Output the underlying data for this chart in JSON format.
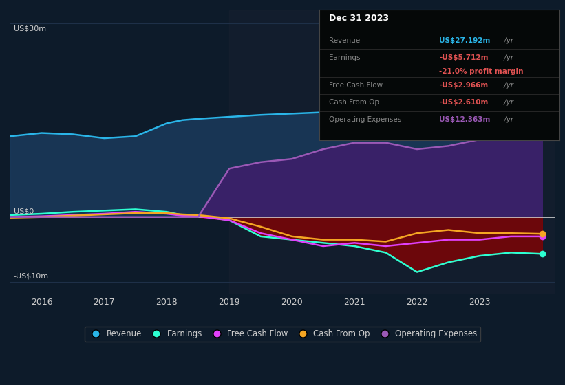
{
  "background_color": "#0d1b2a",
  "plot_bg_color": "#0d1b2a",
  "years": [
    2015.5,
    2016,
    2016.5,
    2017,
    2017.5,
    2018,
    2018.25,
    2018.5,
    2019,
    2019.5,
    2020,
    2020.5,
    2021,
    2021.5,
    2022,
    2022.5,
    2023,
    2023.5,
    2024.0
  ],
  "revenue": [
    12.5,
    13.0,
    12.8,
    12.2,
    12.5,
    14.5,
    15.0,
    15.2,
    15.5,
    15.8,
    16.0,
    16.2,
    16.5,
    18.5,
    22.0,
    25.0,
    27.0,
    27.5,
    27.2
  ],
  "earnings": [
    0.3,
    0.5,
    0.8,
    1.0,
    1.2,
    0.8,
    0.3,
    0.2,
    -0.5,
    -3.0,
    -3.5,
    -4.0,
    -4.5,
    -5.5,
    -8.5,
    -7.0,
    -6.0,
    -5.5,
    -5.7
  ],
  "free_cash_flow": [
    0.0,
    0.1,
    0.3,
    0.5,
    0.8,
    0.5,
    0.2,
    0.1,
    -0.5,
    -2.5,
    -3.5,
    -4.5,
    -4.0,
    -4.5,
    -4.0,
    -3.5,
    -3.5,
    -3.0,
    -3.0
  ],
  "cash_from_op": [
    -0.1,
    0.0,
    0.2,
    0.4,
    0.6,
    0.6,
    0.4,
    0.3,
    -0.2,
    -1.5,
    -3.0,
    -3.5,
    -3.5,
    -3.8,
    -2.5,
    -2.0,
    -2.5,
    -2.5,
    -2.6
  ],
  "op_expenses": [
    0.0,
    0.0,
    0.0,
    0.0,
    0.0,
    0.0,
    0.0,
    0.0,
    7.5,
    8.5,
    9.0,
    10.5,
    11.5,
    11.5,
    10.5,
    11.0,
    12.0,
    12.5,
    12.4
  ],
  "revenue_color": "#2ab5e8",
  "earnings_color": "#2dffd2",
  "free_cash_flow_color": "#e040fb",
  "cash_from_op_color": "#f5a623",
  "op_expenses_color": "#9b59b6",
  "revenue_fill_color": "#1a3a5c",
  "op_expenses_fill_color": "#3d1f6b",
  "earnings_fill_color": "#8b0000",
  "ylim_min": -12,
  "ylim_max": 32,
  "yticks": [
    -10,
    0,
    30
  ],
  "ytick_labels": [
    "-US$10m",
    "US$0",
    "US$30m"
  ],
  "grid_color": "#1e3048",
  "zero_line_color": "#cccccc",
  "text_color": "#cccccc",
  "legend_bg": "#0d1b2a",
  "legend_border": "#444444",
  "highlight_x": 2019,
  "highlight_color": "#162030",
  "table_bg": "#050808",
  "table_border": "#444444",
  "table_data": {
    "title": "Dec 31 2023",
    "rows": [
      {
        "label": "Revenue",
        "value": "US$27.192m",
        "unit": " /yr",
        "value_color": "#2ab5e8"
      },
      {
        "label": "Earnings",
        "value": "-US$5.712m",
        "unit": " /yr",
        "value_color": "#e05252",
        "extra": "-21.0% profit margin",
        "extra_color": "#e05252"
      },
      {
        "label": "Free Cash Flow",
        "value": "-US$2.966m",
        "unit": " /yr",
        "value_color": "#e05252"
      },
      {
        "label": "Cash From Op",
        "value": "-US$2.610m",
        "unit": " /yr",
        "value_color": "#e05252"
      },
      {
        "label": "Operating Expenses",
        "value": "US$12.363m",
        "unit": " /yr",
        "value_color": "#9b59b6"
      }
    ]
  },
  "xmin": 2015.5,
  "xmax": 2024.2,
  "xticks": [
    2016,
    2017,
    2018,
    2019,
    2020,
    2021,
    2022,
    2023
  ]
}
